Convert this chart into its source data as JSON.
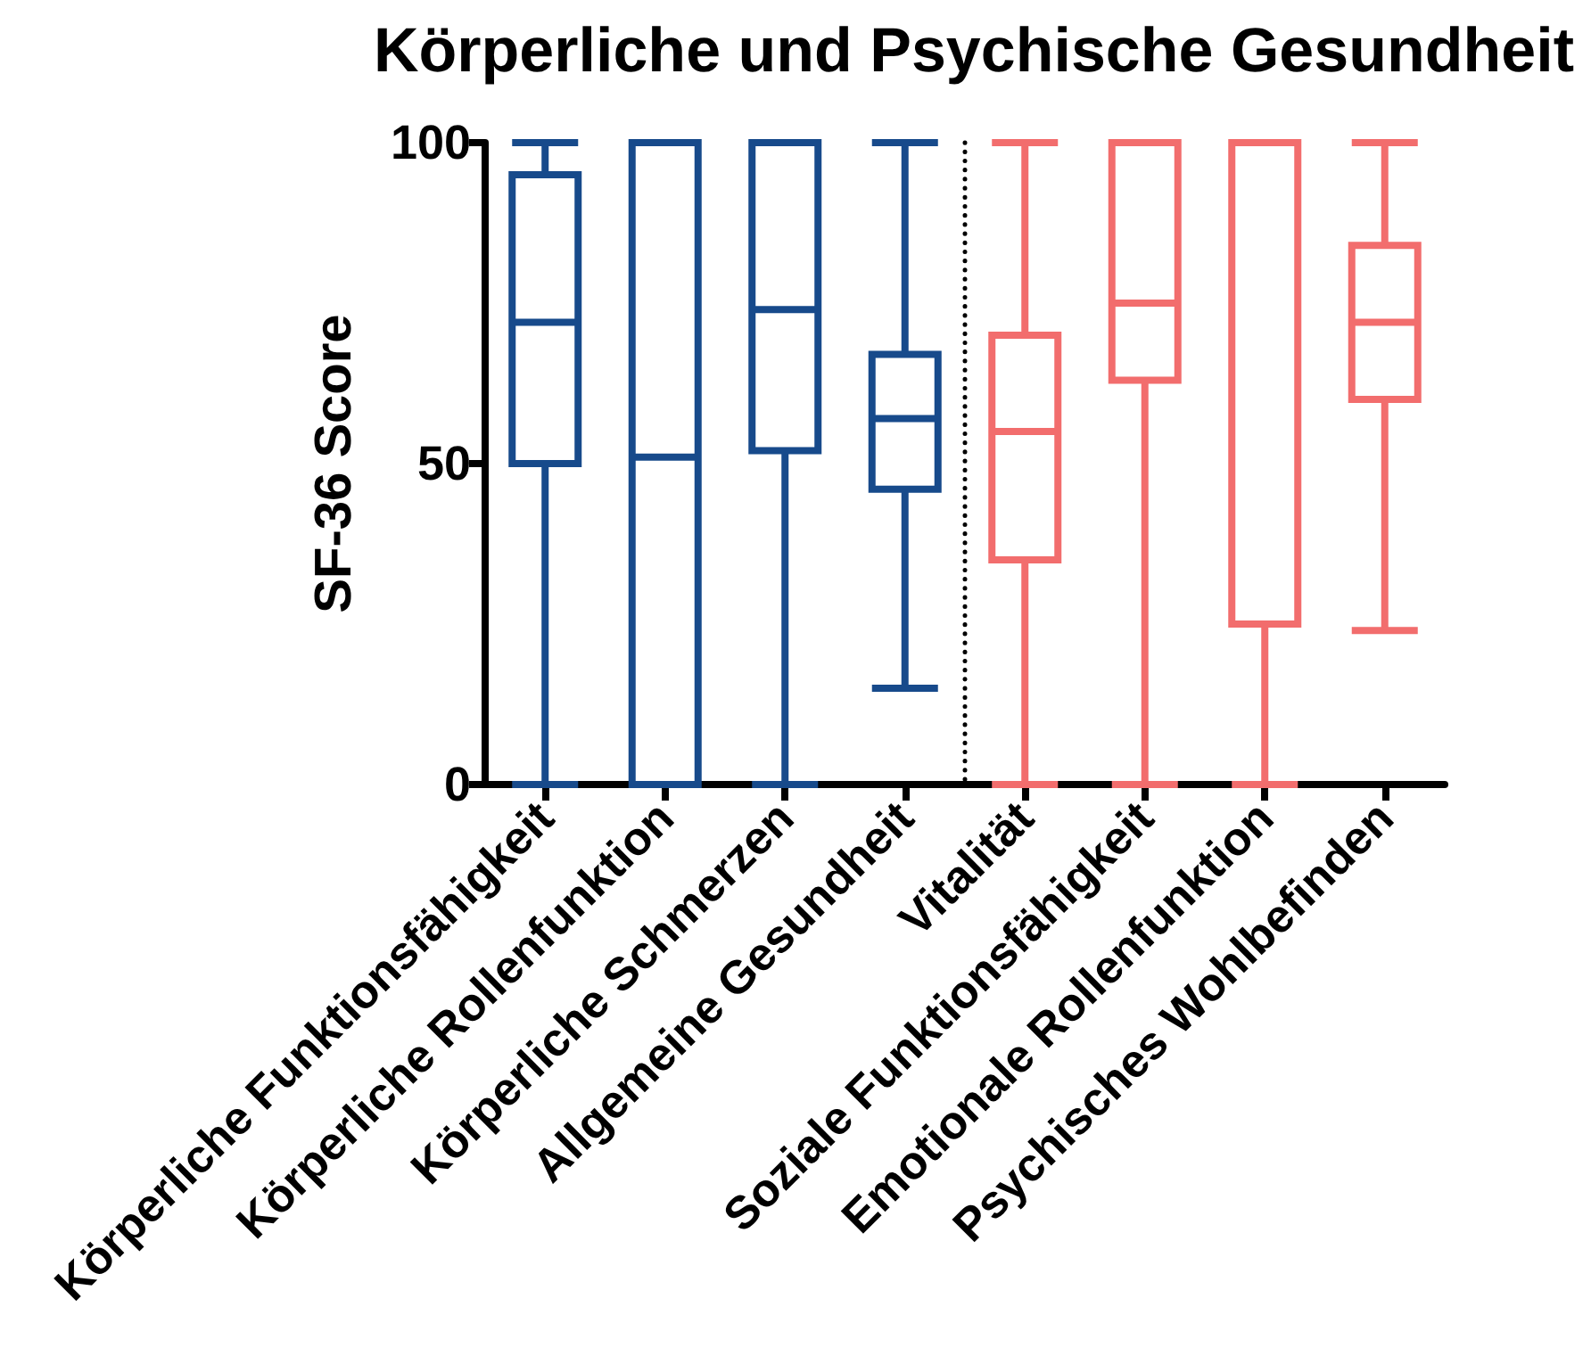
{
  "chart_data": {
    "type": "box",
    "title": "Körperliche und Psychische Gesundheit",
    "ylabel": "SF-36 Score",
    "categories": [
      "Körperliche Funktionsfähigkeit",
      "Körperliche Rollenfunktion",
      "Körperliche Schmerzen",
      "Allgemeine Gesundheit",
      "Vitalität",
      "Soziale Funktionsfähigkeit",
      "Emotionale Rollenfunktion",
      "Psychisches Wohlbefinden"
    ],
    "boxes": [
      {
        "low": 0,
        "q1": 50,
        "median": 72,
        "q3": 95,
        "high": 100
      },
      {
        "low": 0,
        "q1": 0,
        "median": 51,
        "q3": 100,
        "high": 100
      },
      {
        "low": 0,
        "q1": 52,
        "median": 74,
        "q3": 100,
        "high": 100
      },
      {
        "low": 15,
        "q1": 46,
        "median": 57,
        "q3": 67,
        "high": 100
      },
      {
        "low": 0,
        "q1": 35,
        "median": 55,
        "q3": 70,
        "high": 100
      },
      {
        "low": 0,
        "q1": 63,
        "median": 75,
        "q3": 100,
        "high": 100
      },
      {
        "low": 0,
        "q1": 25,
        "median": 100,
        "q3": 100,
        "high": 100
      },
      {
        "low": 24,
        "q1": 60,
        "median": 72,
        "q3": 84,
        "high": 100
      }
    ],
    "colors": [
      "#174a8b",
      "#174a8b",
      "#174a8b",
      "#174a8b",
      "#f26d6d",
      "#f26d6d",
      "#f26d6d",
      "#f26d6d"
    ],
    "ylim": [
      0,
      100
    ],
    "yticks": [
      0,
      50,
      100
    ]
  }
}
